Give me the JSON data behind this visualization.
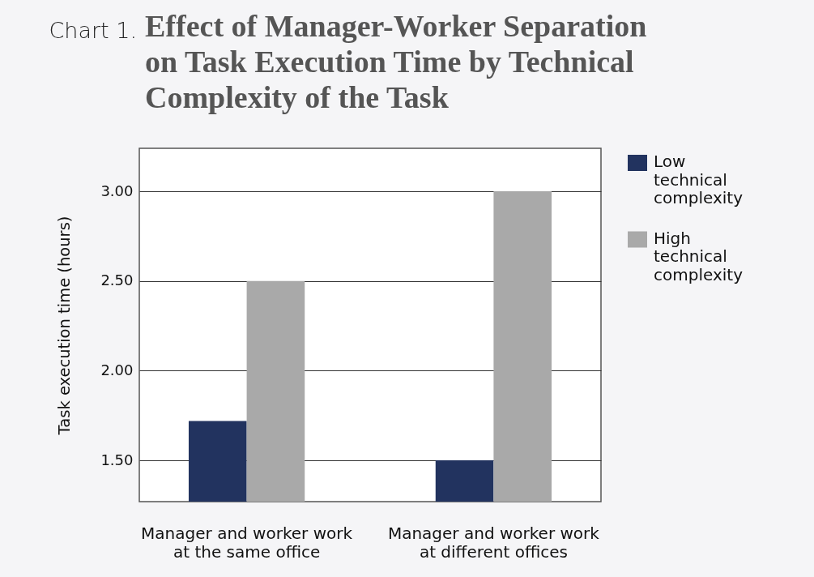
{
  "chart_data": {
    "type": "bar",
    "title": "Effect of Manager-Worker Separation on Task Execution Time by Technical Complexity of the Task",
    "annotations": [
      "Chart 1."
    ],
    "ylabel": "Task execution time (hours)",
    "categories": [
      "Manager and worker work at the same office",
      "Manager and worker work at different offices"
    ],
    "series": [
      {
        "name": "Low technical complexity",
        "color": "#22335f",
        "values": [
          1.72,
          1.5
        ]
      },
      {
        "name": "High technical complexity",
        "color": "#a9a9a9",
        "values": [
          2.5,
          3.0
        ]
      }
    ],
    "ylim": [
      1.27,
      3.24
    ],
    "yticks": [
      {
        "value": 1.5,
        "label": "1.50"
      },
      {
        "value": 2.0,
        "label": "2.00"
      },
      {
        "value": 2.5,
        "label": "2.50"
      },
      {
        "value": 3.0,
        "label": "3.00"
      }
    ],
    "grid": "y",
    "legend": "right"
  }
}
